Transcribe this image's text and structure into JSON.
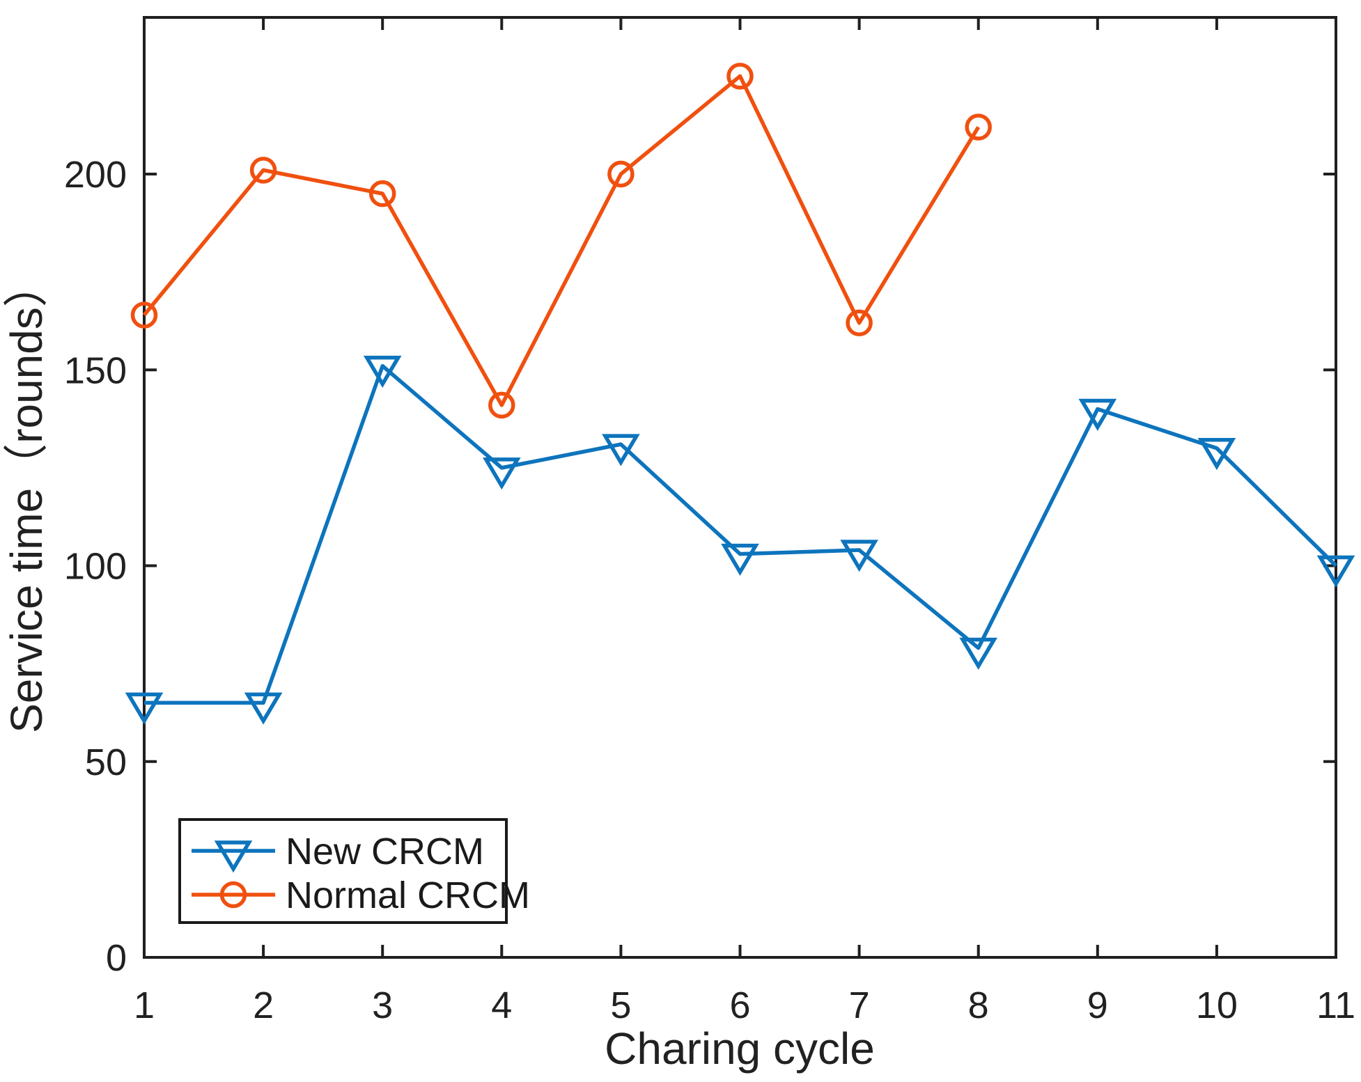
{
  "figure": {
    "background": "#ffffff",
    "axis_color": "#1f1f1f",
    "text_color": "#212121"
  },
  "chart_data": {
    "type": "line",
    "title": "",
    "xlabel": "Charing cycle",
    "ylabel": "Service time（rounds）",
    "xlim": [
      1,
      11
    ],
    "ylim": [
      0,
      240
    ],
    "xticks": [
      1,
      2,
      3,
      4,
      5,
      6,
      7,
      8,
      9,
      10,
      11
    ],
    "yticks": [
      0,
      50,
      100,
      150,
      200
    ],
    "grid": false,
    "legend_position": "inside-bottom-left",
    "series": [
      {
        "name": "New CRCM",
        "color": "#0D74BD",
        "marker": "triangle-down",
        "x": [
          1,
          2,
          3,
          4,
          5,
          6,
          7,
          8,
          9,
          10,
          11
        ],
        "values": [
          65,
          65,
          151,
          125,
          131,
          103,
          104,
          79,
          140,
          130,
          100
        ]
      },
      {
        "name": "Normal CRCM",
        "color": "#F0500F",
        "marker": "circle",
        "x": [
          1,
          2,
          3,
          4,
          5,
          6,
          7,
          8
        ],
        "values": [
          164,
          201,
          195,
          141,
          200,
          225,
          162,
          212
        ]
      }
    ]
  }
}
